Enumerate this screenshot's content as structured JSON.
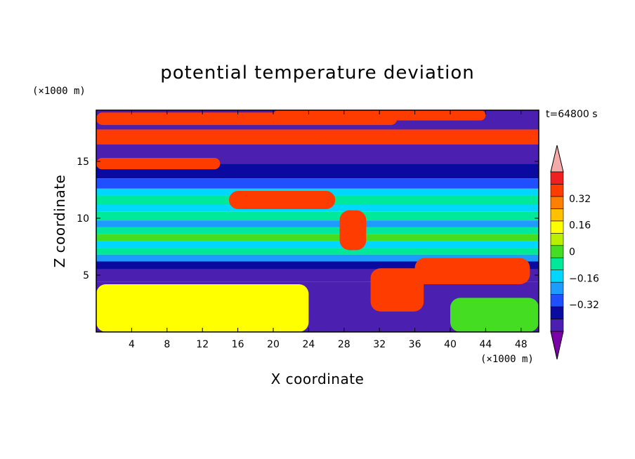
{
  "chart_data": {
    "type": "heatmap",
    "title": "potential temperature deviation",
    "xlabel": "X coordinate",
    "ylabel": "Z coordinate",
    "x_unit": "(×1000 m)",
    "y_unit": "(×1000 m)",
    "time_label": "t=64800 s",
    "xlim": [
      0,
      50
    ],
    "ylim": [
      0,
      19.5
    ],
    "x_ticks": [
      4,
      8,
      12,
      16,
      20,
      24,
      28,
      32,
      36,
      40,
      44,
      48
    ],
    "y_ticks": [
      5,
      10,
      15
    ],
    "colorbar": {
      "levels": [
        -0.48,
        -0.4,
        -0.32,
        -0.24,
        -0.16,
        -0.08,
        0,
        0.08,
        0.16,
        0.24,
        0.32,
        0.4,
        0.48
      ],
      "tick_labels": [
        "0.32",
        "0.16",
        "0",
        "−0.16",
        "−0.32"
      ],
      "tick_values": [
        0.32,
        0.16,
        0,
        -0.16,
        -0.32
      ],
      "colors_low_to_high": [
        "#7a00a8",
        "#4b1fb0",
        "#0a0aa0",
        "#1e50ff",
        "#1e9bff",
        "#00d7ff",
        "#00e89a",
        "#44dd22",
        "#b8f000",
        "#ffff00",
        "#ffc000",
        "#ff7f00",
        "#ff3c00",
        "#f02020",
        "#f5aaaa"
      ],
      "extends": "both"
    },
    "layers": [
      {
        "z": [
          17.8,
          19.5
        ],
        "value": -0.42
      },
      {
        "z": [
          16.5,
          17.8
        ],
        "value": 0.45
      },
      {
        "z": [
          14.8,
          16.5
        ],
        "value": -0.44
      },
      {
        "z": [
          13.5,
          14.8
        ],
        "value": -0.36
      },
      {
        "z": [
          12.6,
          13.5
        ],
        "value": -0.3
      },
      {
        "z": [
          12.0,
          12.6
        ],
        "value": -0.16
      },
      {
        "z": [
          11.2,
          12.0
        ],
        "value": -0.04
      },
      {
        "z": [
          10.6,
          11.2
        ],
        "value": -0.12
      },
      {
        "z": [
          9.8,
          10.6
        ],
        "value": -0.06
      },
      {
        "z": [
          9.2,
          9.8
        ],
        "value": -0.2
      },
      {
        "z": [
          8.6,
          9.2
        ],
        "value": -0.08
      },
      {
        "z": [
          8.0,
          8.6
        ],
        "value": 0.0
      },
      {
        "z": [
          7.4,
          8.0
        ],
        "value": -0.1
      },
      {
        "z": [
          6.8,
          7.4
        ],
        "value": -0.04
      },
      {
        "z": [
          6.2,
          6.8
        ],
        "value": -0.22
      },
      {
        "z": [
          5.5,
          6.2
        ],
        "value": -0.34
      },
      {
        "z": [
          4.4,
          5.5
        ],
        "value": -0.42
      },
      {
        "z": [
          0,
          4.4
        ],
        "value": -0.44
      }
    ],
    "anomalies": [
      {
        "x": 0,
        "z": 18.2,
        "w": 34,
        "h": 1.1,
        "value": 0.45
      },
      {
        "x": 20,
        "z": 18.6,
        "w": 24,
        "h": 0.9,
        "value": 0.45
      },
      {
        "x": 0,
        "z": 14.3,
        "w": 14,
        "h": 1.0,
        "value": 0.45
      },
      {
        "x": 14,
        "z": 16.5,
        "w": 12,
        "h": 1.2,
        "value": 0.45
      },
      {
        "x": 15,
        "z": 10.8,
        "w": 12,
        "h": 1.6,
        "value": 0.45
      },
      {
        "x": 27.5,
        "z": 7.2,
        "w": 3,
        "h": 3.5,
        "value": 0.45
      },
      {
        "x": 31,
        "z": 1.8,
        "w": 6,
        "h": 3.8,
        "value": 0.45
      },
      {
        "x": 36,
        "z": 4.2,
        "w": 13,
        "h": 2.3,
        "value": 0.45
      },
      {
        "x": 0,
        "z": 0,
        "w": 24,
        "h": 4.2,
        "value": 0.2
      },
      {
        "x": 40,
        "z": 0,
        "w": 10,
        "h": 3.0,
        "value": 0.05
      }
    ]
  }
}
